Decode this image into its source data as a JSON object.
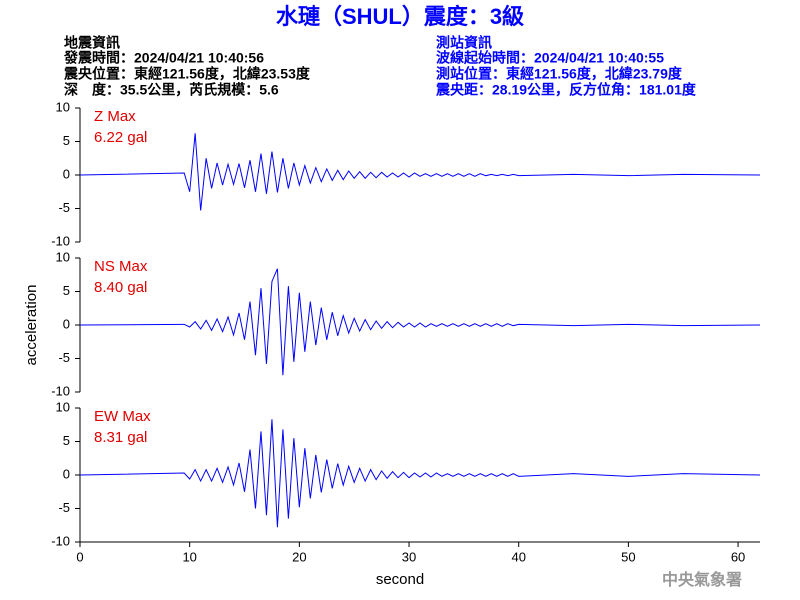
{
  "header": {
    "title": "水璉（SHUL）震度：3級",
    "left": [
      "地震資訊",
      "發震時間：2024/04/21 10:40:56",
      "震央位置：東經121.56度，北緯23.53度",
      "深　度：35.5公里，芮氏規模：5.6"
    ],
    "right": [
      "測站資訊",
      "波線起始時間：2024/04/21 10:40:55",
      "測站位置：東經121.56度，北緯23.79度",
      "震央距：28.19公里，反方位角：181.01度"
    ]
  },
  "footer": "中央氣象署",
  "chart_data": [
    {
      "type": "line",
      "title": "Z Max",
      "annotation": "6.22 gal",
      "color": "#0000ff",
      "x": [
        0,
        9.5,
        10,
        10.5,
        11,
        11.5,
        12,
        12.5,
        13,
        13.5,
        14,
        14.5,
        15,
        15.5,
        16,
        16.5,
        17,
        17.5,
        18,
        18.5,
        19,
        19.5,
        20,
        20.5,
        21,
        21.5,
        22,
        22.5,
        23,
        23.5,
        24,
        24.5,
        25,
        25.5,
        26,
        26.5,
        27,
        27.5,
        28,
        28.5,
        29,
        29.5,
        30,
        30.5,
        31,
        31.5,
        32,
        32.5,
        33,
        33.5,
        34,
        34.5,
        35,
        35.5,
        36,
        36.5,
        37,
        37.5,
        38,
        38.5,
        39,
        39.5,
        40,
        45,
        50,
        55,
        62
      ],
      "values": [
        0,
        0.3,
        -2.5,
        6.22,
        -5.3,
        2.5,
        -2,
        1.8,
        -1.5,
        1.6,
        -1.4,
        1.7,
        -1.9,
        2.2,
        -2.5,
        3.2,
        -2.8,
        3.5,
        -2.6,
        2.5,
        -2.0,
        1.8,
        -1.5,
        1.4,
        -1.2,
        1.1,
        -1.0,
        0.9,
        -0.8,
        0.7,
        -0.7,
        0.6,
        -0.5,
        0.5,
        -0.5,
        0.4,
        -0.4,
        0.4,
        -0.3,
        0.3,
        -0.3,
        0.3,
        -0.3,
        0.3,
        -0.2,
        0.2,
        -0.2,
        0.2,
        -0.2,
        0.2,
        -0.2,
        0.2,
        -0.2,
        0.2,
        -0.2,
        0.2,
        -0.1,
        0.1,
        -0.1,
        0.1,
        -0.1,
        0.1,
        -0.1,
        0.1,
        -0.1,
        0.1,
        0
      ],
      "xlim": [
        0,
        62
      ],
      "ylim": [
        -10,
        10
      ],
      "yticks": [
        -10,
        -5,
        0,
        5,
        10
      ]
    },
    {
      "type": "line",
      "title": "NS Max",
      "annotation": "8.40 gal",
      "color": "#0000ff",
      "ylabel": "acceleration",
      "x": [
        0,
        9.5,
        10,
        10.5,
        11,
        11.5,
        12,
        12.5,
        13,
        13.5,
        14,
        14.5,
        15,
        15.5,
        16,
        16.5,
        17,
        17.5,
        18,
        18.5,
        19,
        19.5,
        20,
        20.5,
        21,
        21.5,
        22,
        22.5,
        23,
        23.5,
        24,
        24.5,
        25,
        25.5,
        26,
        26.5,
        27,
        27.5,
        28,
        28.5,
        29,
        29.5,
        30,
        30.5,
        31,
        31.5,
        32,
        32.5,
        33,
        33.5,
        34,
        34.5,
        35,
        35.5,
        36,
        36.5,
        37,
        37.5,
        38,
        38.5,
        39,
        39.5,
        40,
        45,
        50,
        55,
        62
      ],
      "values": [
        0,
        0.1,
        -0.3,
        0.5,
        -0.6,
        0.7,
        -0.8,
        0.9,
        -1.0,
        1.2,
        -1.5,
        1.8,
        -2.2,
        3.5,
        -4.5,
        5.5,
        -5.8,
        6.5,
        8.4,
        -7.5,
        5.8,
        -5.5,
        4.8,
        -4.0,
        3.5,
        -3.0,
        2.6,
        -2.2,
        1.9,
        -1.6,
        1.4,
        -1.2,
        1.0,
        -0.9,
        0.8,
        -0.7,
        0.6,
        -0.5,
        0.5,
        -0.4,
        0.4,
        -0.3,
        0.3,
        -0.3,
        0.3,
        -0.3,
        0.2,
        -0.2,
        0.2,
        -0.2,
        0.2,
        -0.2,
        0.2,
        -0.2,
        0.2,
        -0.2,
        0.2,
        -0.2,
        0.2,
        -0.2,
        0.2,
        -0.1,
        0.1,
        -0.1,
        0.1,
        -0.1,
        0
      ],
      "xlim": [
        0,
        62
      ],
      "ylim": [
        -10,
        10
      ],
      "yticks": [
        -10,
        -5,
        0,
        5,
        10
      ]
    },
    {
      "type": "line",
      "title": "EW Max",
      "annotation": "8.31 gal",
      "color": "#0000ff",
      "xlabel": "second",
      "x": [
        0,
        9.5,
        10,
        10.5,
        11,
        11.5,
        12,
        12.5,
        13,
        13.5,
        14,
        14.5,
        15,
        15.5,
        16,
        16.5,
        17,
        17.5,
        18,
        18.5,
        19,
        19.5,
        20,
        20.5,
        21,
        21.5,
        22,
        22.5,
        23,
        23.5,
        24,
        24.5,
        25,
        25.5,
        26,
        26.5,
        27,
        27.5,
        28,
        28.5,
        29,
        29.5,
        30,
        30.5,
        31,
        31.5,
        32,
        32.5,
        33,
        33.5,
        34,
        34.5,
        35,
        35.5,
        36,
        36.5,
        37,
        37.5,
        38,
        38.5,
        39,
        39.5,
        40,
        45,
        50,
        55,
        62
      ],
      "values": [
        0,
        0.3,
        -0.6,
        0.8,
        -0.9,
        0.8,
        -0.9,
        1.0,
        -1.1,
        1.2,
        -1.5,
        1.8,
        -2.5,
        3.8,
        -5.0,
        6.5,
        -6.0,
        8.31,
        -7.8,
        6.8,
        -6.5,
        5.5,
        -4.8,
        4.0,
        -3.5,
        3.0,
        -2.6,
        2.3,
        -2.0,
        1.7,
        -1.5,
        1.3,
        -1.1,
        1.0,
        -0.9,
        0.8,
        -0.7,
        0.6,
        -0.5,
        0.5,
        -0.4,
        0.4,
        -0.4,
        0.3,
        -0.3,
        0.3,
        -0.3,
        0.3,
        -0.2,
        0.2,
        -0.2,
        0.2,
        -0.2,
        0.2,
        -0.2,
        0.2,
        -0.2,
        0.2,
        -0.2,
        0.2,
        -0.2,
        0.2,
        -0.2,
        0.2,
        -0.2,
        0.2,
        0
      ],
      "xlim": [
        0,
        62
      ],
      "ylim": [
        -10,
        10
      ],
      "yticks": [
        -10,
        -5,
        0,
        5,
        10
      ],
      "xticks": [
        0,
        10,
        20,
        30,
        40,
        50,
        60
      ]
    }
  ]
}
